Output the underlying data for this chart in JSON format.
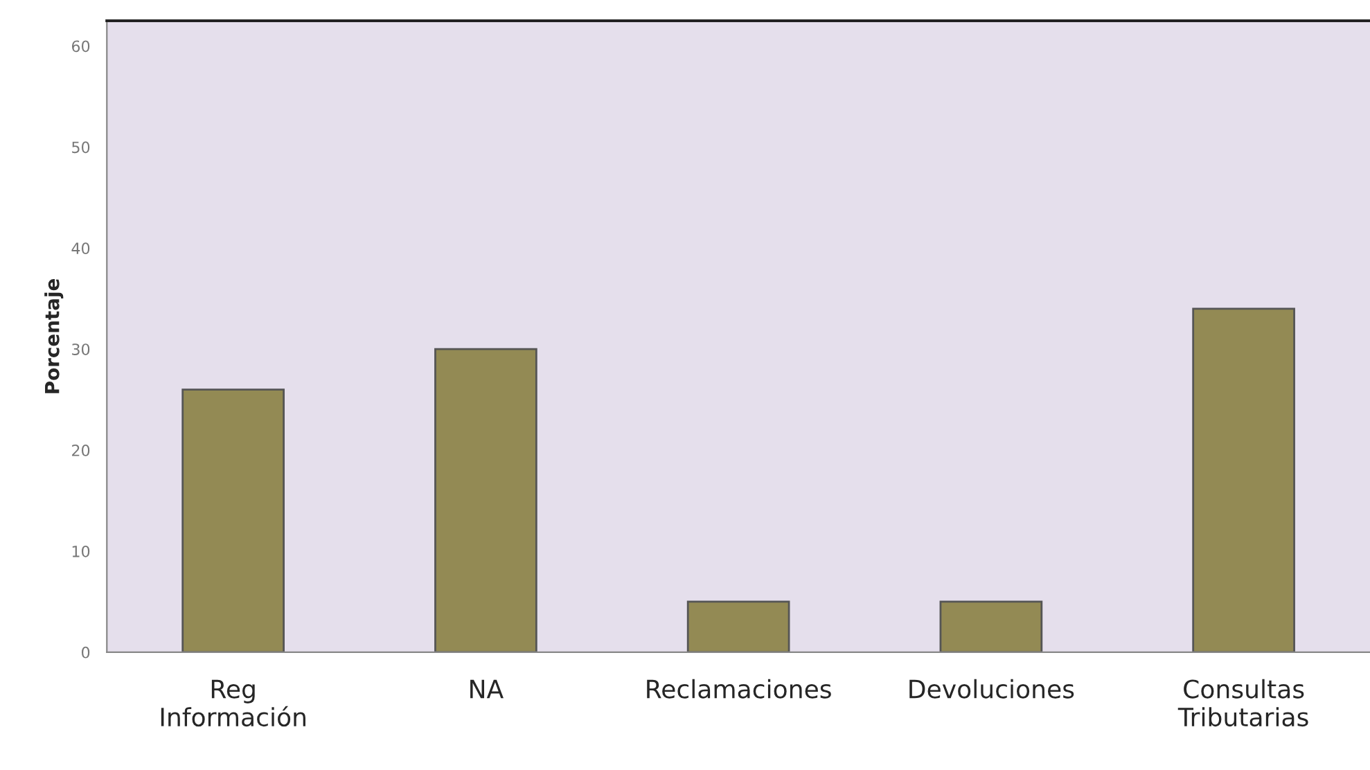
{
  "chart_data": {
    "type": "bar",
    "ylabel": "Porcentaje",
    "categories": [
      "Reg\nInformación",
      "NA",
      "Reclamaciones",
      "Devoluciones",
      "Consultas\nTributarias"
    ],
    "values": [
      26,
      30,
      5,
      5,
      34
    ],
    "color": "#938a54",
    "ylim": [
      0,
      62.5
    ],
    "yticks": [
      0,
      10,
      20,
      30,
      40,
      50,
      60
    ],
    "grid": false,
    "legend": false
  }
}
